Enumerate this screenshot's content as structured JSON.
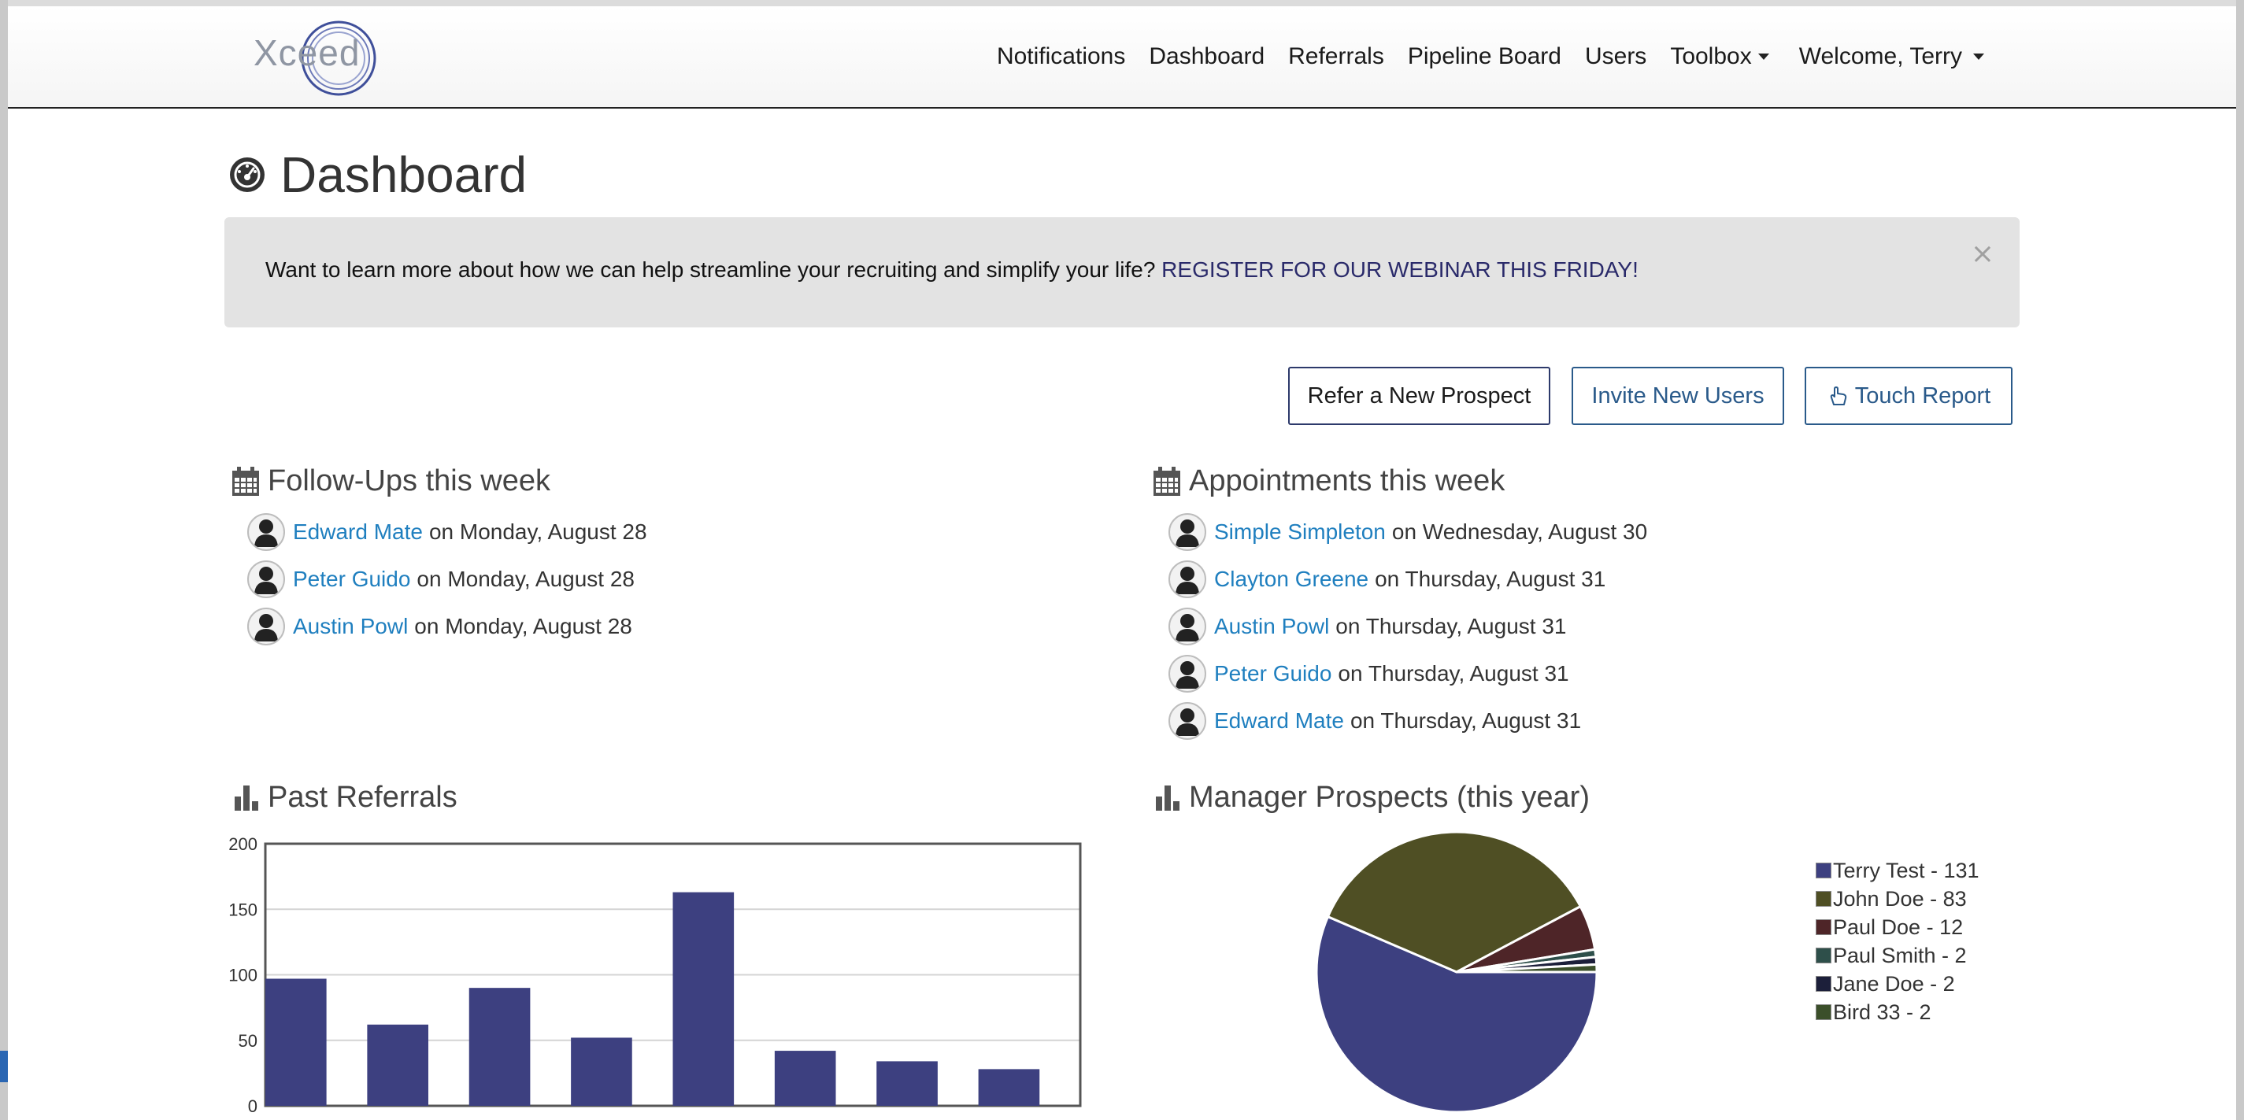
{
  "nav": {
    "logo_text": "Xceed",
    "links": [
      "Notifications",
      "Dashboard",
      "Referrals",
      "Pipeline Board",
      "Users",
      "Toolbox"
    ],
    "welcome": "Welcome, Terry"
  },
  "page": {
    "title": "Dashboard"
  },
  "alert": {
    "message": "Want to learn more about how we can help streamline your recruiting and simplify your life?",
    "link": "REGISTER FOR OUR WEBINAR THIS FRIDAY!",
    "close": "×"
  },
  "actions": {
    "refer": "Refer a New Prospect",
    "invite": "Invite New Users",
    "touch": "Touch Report"
  },
  "followups": {
    "title": "Follow-Ups this week",
    "items": [
      {
        "name": "Edward Mate",
        "when": "on Monday, August 28"
      },
      {
        "name": "Peter Guido",
        "when": "on Monday, August 28"
      },
      {
        "name": "Austin Powl",
        "when": "on Monday, August 28"
      }
    ]
  },
  "appointments": {
    "title": "Appointments this week",
    "items": [
      {
        "name": "Simple Simpleton",
        "when": "on Wednesday, August 30"
      },
      {
        "name": "Clayton Greene",
        "when": "on Thursday, August 31"
      },
      {
        "name": "Austin Powl",
        "when": "on Thursday, August 31"
      },
      {
        "name": "Peter Guido",
        "when": "on Thursday, August 31"
      },
      {
        "name": "Edward Mate",
        "when": "on Thursday, August 31"
      }
    ]
  },
  "past_referrals": {
    "title": "Past Referrals"
  },
  "manager_prospects": {
    "title": "Manager Prospects (this year)"
  },
  "colors": {
    "link": "#1f7fbf",
    "bar": "#3d4080",
    "pie": [
      "#3d4080",
      "#4f4f24",
      "#4e2528",
      "#2e4f4a",
      "#1c1f3a",
      "#3b4f2a"
    ]
  },
  "chart_data": [
    {
      "type": "bar",
      "yticks": [
        0,
        50,
        100,
        150,
        200
      ],
      "ylim": [
        0,
        200
      ],
      "values": [
        97,
        62,
        90,
        52,
        163,
        42,
        34,
        28
      ],
      "grid": true
    },
    {
      "type": "pie",
      "labels": [
        "Terry Test - 131",
        "John Doe - 83",
        "Paul Doe - 12",
        "Paul Smith - 2",
        "Jane Doe - 2",
        "Bird 33 - 2"
      ],
      "values": [
        131,
        83,
        12,
        2,
        2,
        2
      ],
      "legend": "right"
    }
  ]
}
